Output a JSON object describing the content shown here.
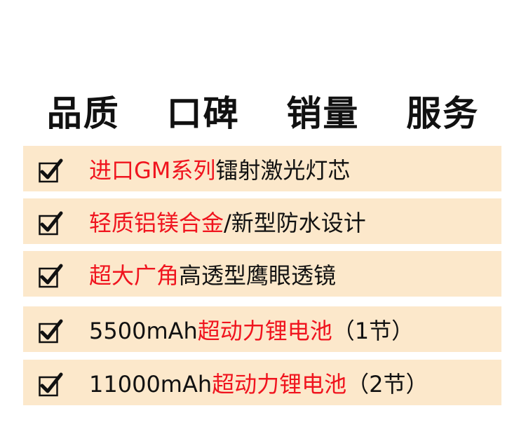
{
  "title": "品质  口碑  销量  服务",
  "colors": {
    "highlight": "#f0141e",
    "text": "#111111",
    "bar_bg": "#fce8cb"
  },
  "check_icon": "checkbox-checked-icon",
  "features": [
    {
      "segments": [
        {
          "text": "进口GM系列",
          "red": true
        },
        {
          "text": "镭射激光灯芯",
          "red": false
        }
      ]
    },
    {
      "segments": [
        {
          "text": "轻质铝镁合金",
          "red": true
        },
        {
          "text": "/新型防水设计",
          "red": false
        }
      ]
    },
    {
      "segments": [
        {
          "text": "超大广角",
          "red": true
        },
        {
          "text": "高透型鹰眼透镜",
          "red": false
        }
      ]
    },
    {
      "segments": [
        {
          "text": "5500mAh",
          "red": false
        },
        {
          "text": "超动力锂电池",
          "red": true
        },
        {
          "text": "（1节）",
          "red": false
        }
      ]
    },
    {
      "segments": [
        {
          "text": "11000mAh",
          "red": false
        },
        {
          "text": "超动力锂电池",
          "red": true
        },
        {
          "text": "（2节）",
          "red": false
        }
      ]
    }
  ]
}
